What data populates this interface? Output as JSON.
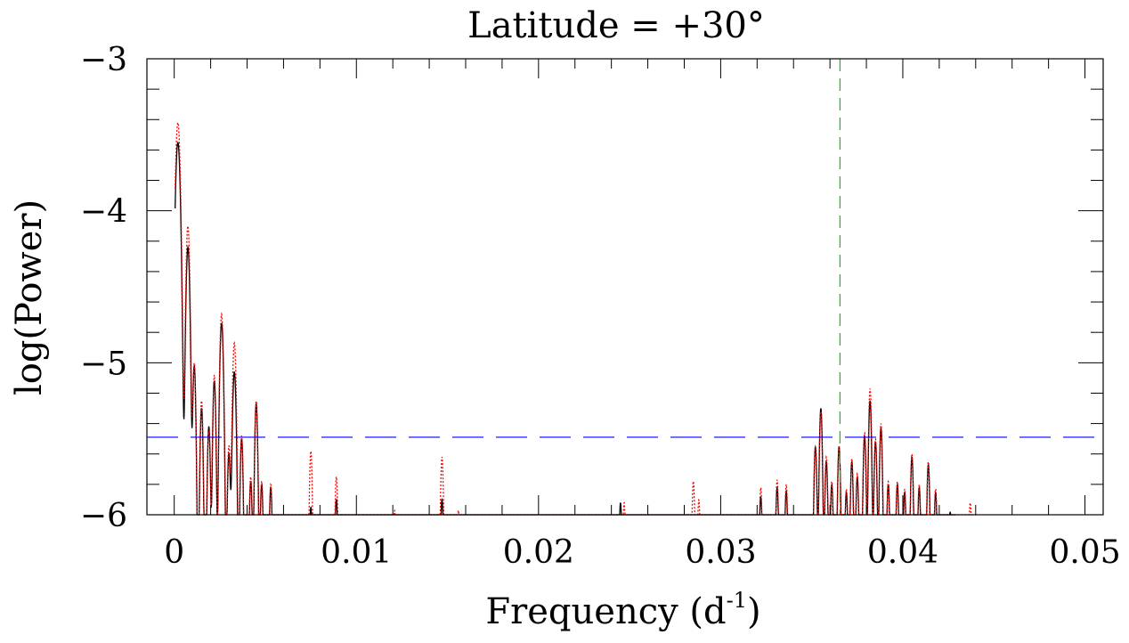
{
  "chart_data": {
    "type": "line",
    "title": "Latitude = +30°",
    "xlabel": "Frequency (d",
    "xlabel_sup": "-1",
    "xlabel_close": ")",
    "ylabel": "log(Power)",
    "xlim": [
      -0.0015,
      0.051
    ],
    "ylim": [
      -6,
      -3
    ],
    "xticks": [
      0,
      0.01,
      0.02,
      0.03,
      0.04,
      0.05
    ],
    "xtick_labels": [
      "0",
      "0.01",
      "0.02",
      "0.03",
      "0.04",
      "0.05"
    ],
    "yticks": [
      -3,
      -4,
      -5,
      -6
    ],
    "ytick_labels": [
      "−3",
      "−4",
      "−5",
      "−6"
    ],
    "threshold": {
      "y": -5.49,
      "color": "#0000ff",
      "style": "long-dash"
    },
    "marker_line": {
      "x": 0.03655,
      "color": "#00cc00",
      "style": "dash"
    },
    "series": [
      {
        "color": "#000000",
        "style": "solid",
        "peaks": [
          [
            0.0002,
            -3.55,
            0.00015
          ],
          [
            0.00075,
            -4.24,
            0.00012
          ],
          [
            0.0011,
            -5.02,
            0.0001
          ],
          [
            0.0015,
            -5.3,
            0.0001
          ],
          [
            0.0019,
            -5.42,
            0.0001
          ],
          [
            0.0022,
            -5.12,
            0.0001
          ],
          [
            0.0026,
            -4.74,
            0.00012
          ],
          [
            0.003,
            -5.6,
            0.0001
          ],
          [
            0.0033,
            -5.06,
            0.00012
          ],
          [
            0.0037,
            -5.5,
            0.0001
          ],
          [
            0.0042,
            -5.78,
            0.0001
          ],
          [
            0.0045,
            -5.27,
            0.0001
          ],
          [
            0.0048,
            -5.8,
            0.0001
          ],
          [
            0.0053,
            -5.82,
            0.0001
          ],
          [
            0.0075,
            -5.95,
            0.0001
          ],
          [
            0.0089,
            -5.9,
            0.0001
          ],
          [
            0.0147,
            -5.9,
            0.0001
          ],
          [
            0.0245,
            -5.92,
            0.0001
          ],
          [
            0.0322,
            -5.88,
            0.0001
          ],
          [
            0.0331,
            -5.82,
            0.0001
          ],
          [
            0.0336,
            -5.84,
            0.0001
          ],
          [
            0.0352,
            -5.55,
            0.0001
          ],
          [
            0.0355,
            -5.3,
            0.0001
          ],
          [
            0.0358,
            -5.65,
            0.0001
          ],
          [
            0.0361,
            -5.8,
            0.0001
          ],
          [
            0.0365,
            -5.55,
            0.0001
          ],
          [
            0.0369,
            -5.85,
            0.0001
          ],
          [
            0.0372,
            -5.65,
            0.0001
          ],
          [
            0.0375,
            -5.75,
            0.0001
          ],
          [
            0.0379,
            -5.48,
            0.0001
          ],
          [
            0.0382,
            -5.25,
            0.0001
          ],
          [
            0.0385,
            -5.52,
            0.0001
          ],
          [
            0.0388,
            -5.43,
            0.0001
          ],
          [
            0.0392,
            -5.8,
            0.0001
          ],
          [
            0.0397,
            -5.8,
            0.0001
          ],
          [
            0.0401,
            -5.85,
            0.0001
          ],
          [
            0.0405,
            -5.62,
            0.0001
          ],
          [
            0.0409,
            -5.82,
            0.0001
          ],
          [
            0.0414,
            -5.67,
            0.0001
          ],
          [
            0.0418,
            -5.85,
            0.0001
          ],
          [
            0.0426,
            -5.98,
            0.0001
          ]
        ]
      },
      {
        "color": "#ff0000",
        "style": "dotted",
        "peaks": [
          [
            0.0002,
            -3.42,
            0.00015
          ],
          [
            0.00075,
            -4.1,
            0.00012
          ],
          [
            0.0011,
            -5.0,
            0.0001
          ],
          [
            0.0015,
            -5.25,
            0.0001
          ],
          [
            0.0019,
            -5.45,
            0.0001
          ],
          [
            0.0022,
            -5.08,
            0.0001
          ],
          [
            0.0026,
            -4.68,
            0.00012
          ],
          [
            0.003,
            -5.55,
            0.0001
          ],
          [
            0.0033,
            -4.87,
            0.00012
          ],
          [
            0.0037,
            -5.48,
            0.0001
          ],
          [
            0.0042,
            -5.75,
            0.0001
          ],
          [
            0.0045,
            -5.25,
            0.0001
          ],
          [
            0.0048,
            -5.78,
            0.0001
          ],
          [
            0.0053,
            -5.8,
            0.0001
          ],
          [
            0.0075,
            -5.58,
            0.0001
          ],
          [
            0.0089,
            -5.75,
            0.0001
          ],
          [
            0.0121,
            -5.97,
            0.0001
          ],
          [
            0.0147,
            -5.62,
            0.0001
          ],
          [
            0.0156,
            -5.97,
            0.0001
          ],
          [
            0.0247,
            -5.92,
            0.0001
          ],
          [
            0.0285,
            -5.78,
            0.0001
          ],
          [
            0.0288,
            -5.9,
            0.0001
          ],
          [
            0.0322,
            -5.82,
            0.0001
          ],
          [
            0.0331,
            -5.77,
            0.0001
          ],
          [
            0.0336,
            -5.8,
            0.0001
          ],
          [
            0.0352,
            -5.55,
            0.0001
          ],
          [
            0.0355,
            -5.32,
            0.0001
          ],
          [
            0.0358,
            -5.62,
            0.0001
          ],
          [
            0.0361,
            -5.78,
            0.0001
          ],
          [
            0.0365,
            -5.55,
            0.0001
          ],
          [
            0.0369,
            -5.83,
            0.0001
          ],
          [
            0.0372,
            -5.63,
            0.0001
          ],
          [
            0.0375,
            -5.73,
            0.0001
          ],
          [
            0.0379,
            -5.46,
            0.0001
          ],
          [
            0.0382,
            -5.17,
            0.0001
          ],
          [
            0.0385,
            -5.5,
            0.0001
          ],
          [
            0.0388,
            -5.4,
            0.0001
          ],
          [
            0.0392,
            -5.78,
            0.0001
          ],
          [
            0.0397,
            -5.78,
            0.0001
          ],
          [
            0.0401,
            -5.83,
            0.0001
          ],
          [
            0.0405,
            -5.6,
            0.0001
          ],
          [
            0.0409,
            -5.8,
            0.0001
          ],
          [
            0.0414,
            -5.65,
            0.0001
          ],
          [
            0.0418,
            -5.83,
            0.0001
          ],
          [
            0.0437,
            -5.92,
            0.0001
          ]
        ]
      }
    ]
  }
}
